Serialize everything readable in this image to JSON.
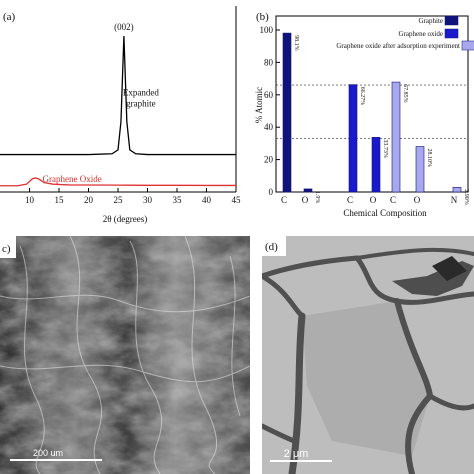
{
  "figure": {
    "panels": {
      "a": {
        "label": "(a)"
      },
      "b": {
        "label": "(b)"
      },
      "c": {
        "label": "c)",
        "scalebar": "200 um"
      },
      "d": {
        "label": "(d)",
        "scalebar": "2 μm"
      }
    }
  },
  "chart_data": [
    {
      "type": "line",
      "panel": "a",
      "xlabel": "2θ (degrees)",
      "ylabel": "",
      "xlim": [
        5,
        45
      ],
      "xticks": [
        10,
        15,
        20,
        25,
        30,
        35,
        40,
        45
      ],
      "series": [
        {
          "name": "Expanded graphite",
          "color": "#000000",
          "x": [
            5,
            10,
            15,
            20,
            24,
            25,
            25.5,
            26,
            26.5,
            27,
            28,
            30,
            35,
            40,
            45
          ],
          "y": [
            0.24,
            0.24,
            0.24,
            0.24,
            0.245,
            0.27,
            0.45,
            1.0,
            0.45,
            0.27,
            0.245,
            0.24,
            0.24,
            0.24,
            0.24
          ]
        },
        {
          "name": "Graphene Oxide",
          "color": "#e03030",
          "x": [
            5,
            8,
            9.5,
            10.5,
            11,
            11.5,
            12.5,
            14,
            17,
            20,
            25,
            30,
            35,
            40,
            45
          ],
          "y": [
            0.04,
            0.04,
            0.05,
            0.085,
            0.09,
            0.085,
            0.06,
            0.05,
            0.045,
            0.045,
            0.044,
            0.043,
            0.043,
            0.042,
            0.042
          ]
        }
      ],
      "annotations": [
        {
          "text": "(002)",
          "x": 26
        },
        {
          "text": "Expanded",
          "x": 26.5
        },
        {
          "text": "graphite",
          "x": 26.5
        },
        {
          "text": "Graphene Oxide",
          "x": 12
        }
      ]
    },
    {
      "type": "bar",
      "panel": "b",
      "xlabel": "Chemical Composition",
      "ylabel": "% Atomic",
      "ylim": [
        0,
        100
      ],
      "yticks": [
        0,
        20,
        40,
        60,
        80,
        100
      ],
      "reference_lines": [
        66,
        33
      ],
      "legend_position": "top-right",
      "series": [
        {
          "name": "Graphite",
          "color": "#10147a",
          "bars": [
            {
              "category": "C",
              "value": 98.1,
              "label": "98.1%"
            },
            {
              "category": "O",
              "value": 1.9,
              "label": "1.9%"
            }
          ]
        },
        {
          "name": "Graphene oxide",
          "color": "#1a1acc",
          "bars": [
            {
              "category": "C",
              "value": 66.27,
              "label": "66.27%"
            },
            {
              "category": "O",
              "value": 33.73,
              "label": "33.73%"
            }
          ]
        },
        {
          "name": "Graphene oxide after adsorption experiment",
          "color": "#a8a8ec",
          "bars": [
            {
              "category": "C",
              "value": 67.85,
              "label": "67.85%"
            },
            {
              "category": "O",
              "value": 28.1,
              "label": "28.10%"
            },
            {
              "category": "N",
              "value": 2.9,
              "label": "2.90%"
            }
          ]
        }
      ]
    }
  ]
}
